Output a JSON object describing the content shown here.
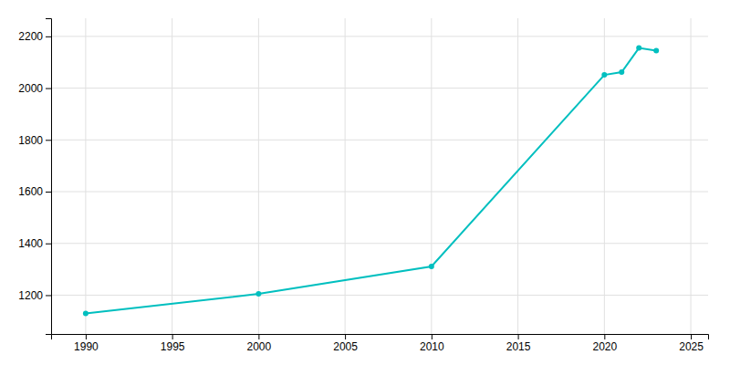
{
  "chart_data": {
    "type": "line",
    "x": [
      1990,
      2000,
      2010,
      2020,
      2021,
      2022,
      2023
    ],
    "values": [
      1129,
      1205,
      1311,
      2051,
      2062,
      2155,
      2145
    ],
    "color": "#00BFBF",
    "marker": "circle",
    "xlim": [
      1988,
      2026
    ],
    "ylim": [
      1050,
      2270
    ],
    "xticks": [
      1990,
      1995,
      2000,
      2005,
      2010,
      2015,
      2020,
      2025
    ],
    "yticks": [
      1200,
      1400,
      1600,
      1800,
      2000,
      2200
    ],
    "grid": true
  }
}
